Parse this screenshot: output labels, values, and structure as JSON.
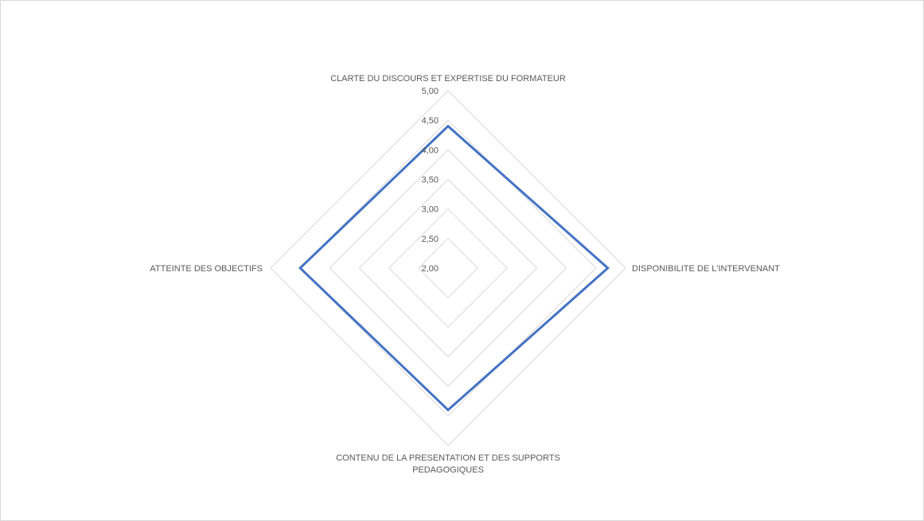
{
  "chart_data": {
    "type": "radar",
    "axes": [
      [
        "CLARTE DU DISCOURS ET EXPERTISE DU FORMATEUR"
      ],
      [
        "DISPONIBILITE DE L'INTERVENANT"
      ],
      [
        "CONTENU DE LA PRESENTATION ET DES SUPPORTS",
        "PEDAGOGIQUES"
      ],
      [
        "ATTEINTE DES OBJECTIFS"
      ]
    ],
    "ticks": [
      "2,00",
      "2,50",
      "3,00",
      "3,50",
      "4,00",
      "4,50",
      "5,00"
    ],
    "range": [
      2,
      5
    ],
    "series": [
      {
        "values": [
          4.4,
          4.7,
          4.4,
          4.5
        ],
        "color": "#4472c4"
      }
    ],
    "grid": true,
    "legend": "none"
  }
}
